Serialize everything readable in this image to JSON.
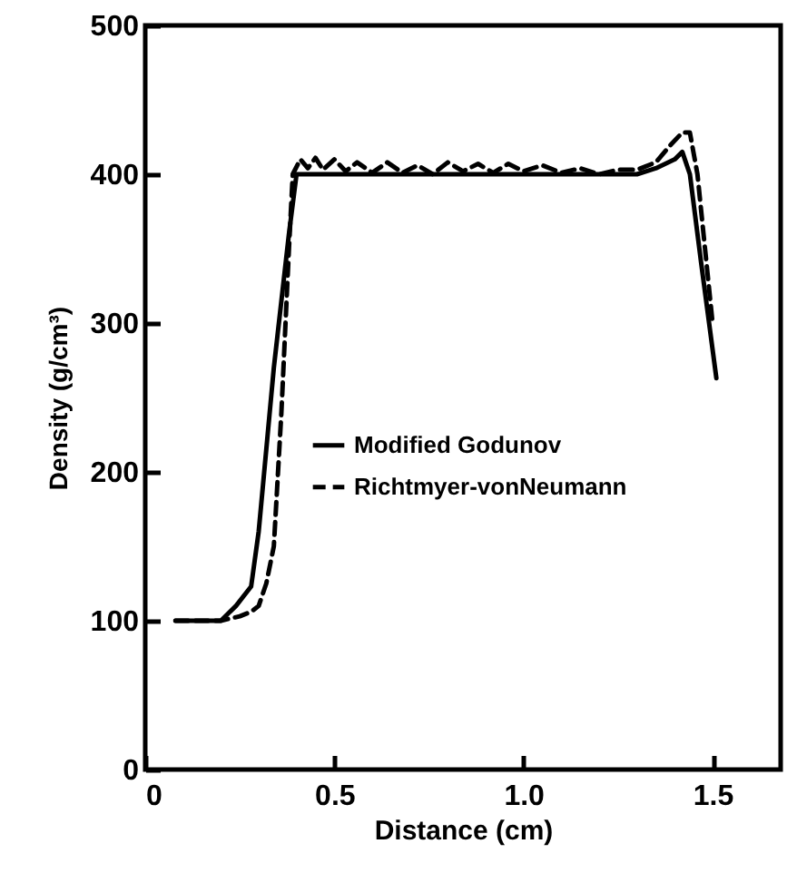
{
  "chart_data": {
    "type": "line",
    "xlabel": "Distance (cm)",
    "ylabel": "Density (g/cm³)",
    "xlim": [
      0,
      1.68
    ],
    "ylim": [
      0,
      500
    ],
    "xticks": [
      0,
      0.5,
      {
        "value": 1,
        "label": "1.0"
      },
      1.5
    ],
    "yticks": [
      0,
      100,
      200,
      300,
      400,
      500
    ],
    "legend": "left",
    "grid": false,
    "series": [
      {
        "name": "Modified Godunov",
        "color": "#000000",
        "line_style": "solid",
        "x": [
          0.08,
          0.12,
          0.2,
          0.24,
          0.28,
          0.3,
          0.34,
          0.38,
          0.4,
          0.5,
          0.7,
          0.9,
          1.1,
          1.25,
          1.3,
          1.35,
          1.4,
          1.42,
          1.44,
          1.47,
          1.51
        ],
        "values": [
          100,
          100,
          100,
          110,
          123,
          160,
          270,
          360,
          400,
          400,
          400,
          400,
          400,
          400,
          400,
          404,
          410,
          415,
          400,
          340,
          263
        ]
      },
      {
        "name": "Richtmyer-vonNeumann",
        "color": "#000000",
        "line_style": "dashed",
        "x": [
          0.08,
          0.2,
          0.25,
          0.28,
          0.3,
          0.32,
          0.34,
          0.36,
          0.38,
          0.39,
          0.41,
          0.43,
          0.45,
          0.47,
          0.5,
          0.53,
          0.56,
          0.6,
          0.64,
          0.68,
          0.72,
          0.76,
          0.8,
          0.84,
          0.88,
          0.92,
          0.96,
          1.0,
          1.05,
          1.1,
          1.15,
          1.2,
          1.25,
          1.3,
          1.35,
          1.39,
          1.42,
          1.44,
          1.46,
          1.48,
          1.5
        ],
        "values": [
          100,
          100,
          103,
          106,
          110,
          125,
          150,
          240,
          350,
          400,
          410,
          404,
          411,
          403,
          410,
          402,
          408,
          401,
          408,
          401,
          406,
          400,
          408,
          402,
          407,
          401,
          407,
          402,
          406,
          401,
          404,
          400,
          403,
          403,
          408,
          420,
          428,
          428,
          400,
          350,
          300
        ]
      }
    ]
  }
}
